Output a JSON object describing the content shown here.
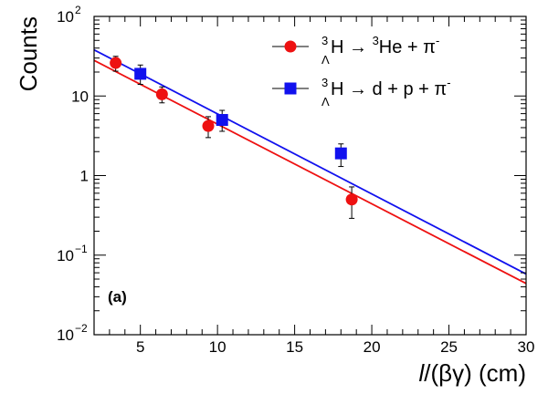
{
  "chart_data": {
    "type": "scatter",
    "xlabel_parts": [
      "l",
      "/(βγ) (cm)"
    ],
    "ylabel": "Counts",
    "xlim": [
      2,
      30
    ],
    "ylim": [
      0.01,
      100
    ],
    "yscale": "log",
    "grid": false,
    "legend_position": "top-right",
    "annotation": "(a)",
    "x_ticks": [
      5,
      10,
      15,
      20,
      25,
      30
    ],
    "x_tick_labels": [
      "5",
      "10",
      "15",
      "20",
      "25",
      "30"
    ],
    "y_ticks": [
      0.01,
      0.1,
      1,
      10,
      100
    ],
    "y_tick_labels": [
      {
        "text": "10",
        "sup": "−2"
      },
      {
        "text": "10",
        "sup": "−1"
      },
      {
        "text": "1",
        "sup": ""
      },
      {
        "text": "10",
        "sup": ""
      },
      {
        "text": "10",
        "sup": "2"
      }
    ],
    "series": [
      {
        "legend": {
          "pre": "3",
          "sub": "Λ",
          "mid": "H → ",
          "pre2": "3",
          "post": "He + π",
          "sup": "-"
        },
        "color": "#ee1111",
        "marker": "circle",
        "x": [
          3.4,
          6.4,
          9.4,
          18.7
        ],
        "y": [
          26.0,
          10.5,
          4.2,
          0.5
        ],
        "y_low": [
          20.5,
          8.2,
          3.0,
          0.29
        ],
        "y_high": [
          31.5,
          13.0,
          5.5,
          0.72
        ],
        "fit": {
          "x": [
            2,
            30
          ],
          "y": [
            28.0,
            0.044
          ]
        }
      },
      {
        "legend": {
          "pre": "3",
          "sub": "Λ",
          "mid": "H → d + p + π",
          "pre2": "",
          "post": "",
          "sup": "-"
        },
        "color": "#1111ee",
        "marker": "square",
        "x": [
          5.0,
          10.3,
          18.0
        ],
        "y": [
          19.0,
          5.0,
          1.9
        ],
        "y_low": [
          14.0,
          3.6,
          1.3
        ],
        "y_high": [
          24.5,
          6.6,
          2.5
        ],
        "fit": {
          "x": [
            2,
            30
          ],
          "y": [
            38.0,
            0.058
          ]
        }
      }
    ]
  }
}
